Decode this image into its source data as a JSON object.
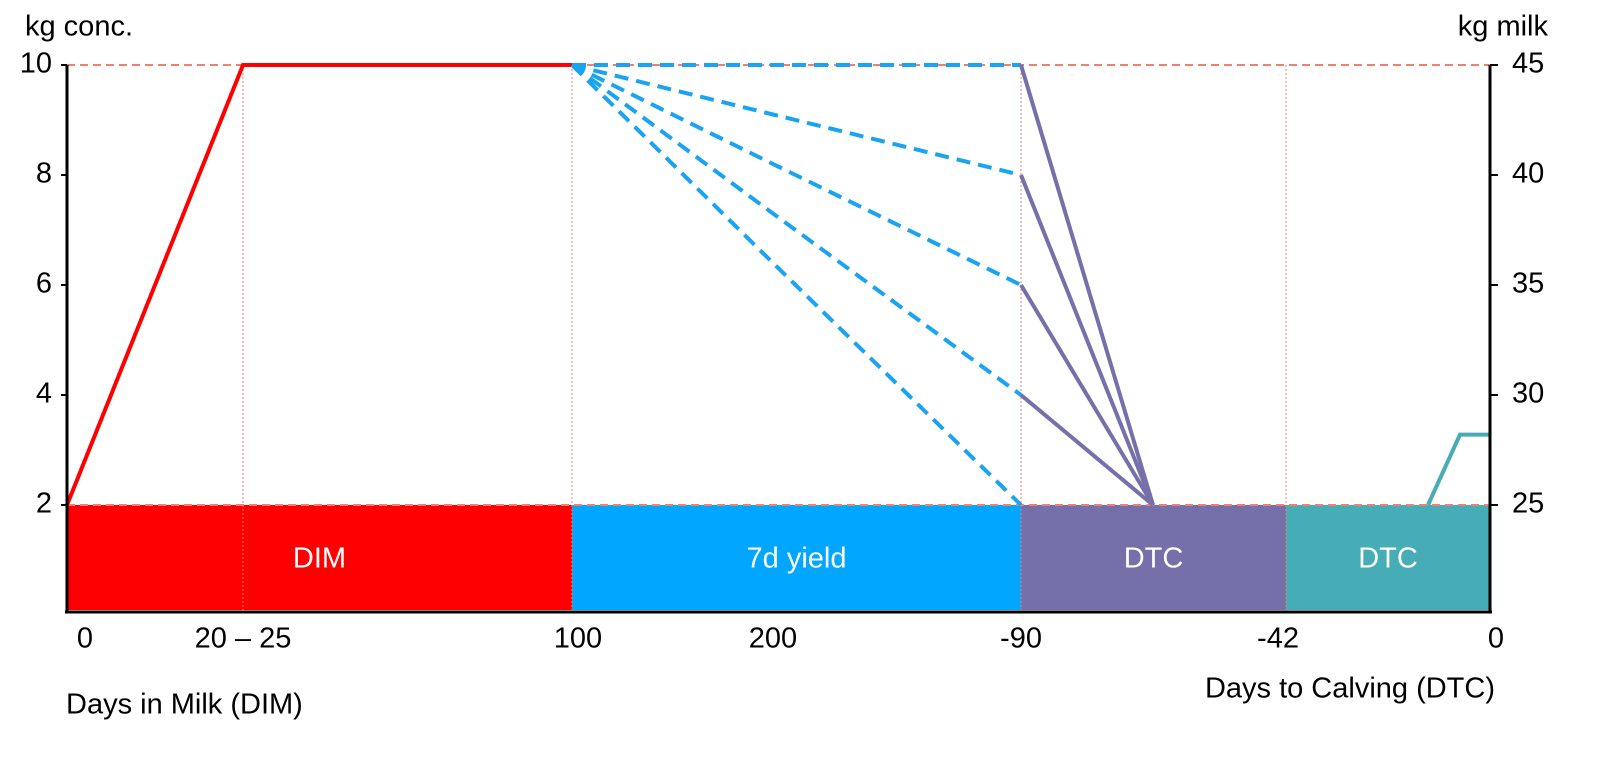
{
  "chart_data": {
    "type": "line",
    "ylabel": "kg conc.",
    "y2label": "kg milk",
    "xlabel": "Days in Milk (DIM)",
    "x2label": "Days to Calving (DTC)",
    "categories": [
      "0",
      "20 – 25",
      "100",
      "200",
      "-90",
      null,
      "-42",
      null,
      null,
      "0"
    ],
    "ylim": [
      0,
      10
    ],
    "yticks": [
      2,
      4,
      6,
      8,
      10
    ],
    "y2lim": [
      20,
      45
    ],
    "y2ticks": [
      25,
      30,
      35,
      40,
      45
    ],
    "reference_lines": [
      10,
      2
    ],
    "bands": [
      {
        "label": "DIM",
        "color": "#ff0000"
      },
      {
        "label": "7d yield",
        "color": "#00a6ff"
      },
      {
        "label": "DTC",
        "color": "#7570aa"
      },
      {
        "label": "DTC",
        "color": "#46adb6"
      }
    ],
    "series": [
      {
        "name": "DIM",
        "color": "#ff0000",
        "dashed": false,
        "values": [
          2,
          10,
          10,
          null,
          null,
          null,
          null,
          null,
          null,
          null
        ]
      },
      {
        "name": "7d yield",
        "color": "#1aa3f0",
        "dashed": true,
        "values": [
          null,
          null,
          10,
          10,
          10,
          null,
          null,
          null,
          null,
          null
        ]
      },
      {
        "name": "7d yield",
        "color": "#1aa3f0",
        "dashed": true,
        "values": [
          null,
          null,
          10,
          9.1,
          8,
          null,
          null,
          null,
          null,
          null
        ]
      },
      {
        "name": "7d yield",
        "color": "#1aa3f0",
        "dashed": true,
        "values": [
          null,
          null,
          10,
          8.2,
          6,
          null,
          null,
          null,
          null,
          null
        ]
      },
      {
        "name": "7d yield",
        "color": "#1aa3f0",
        "dashed": true,
        "values": [
          null,
          null,
          10,
          7.3,
          4,
          null,
          null,
          null,
          null,
          null
        ]
      },
      {
        "name": "7d yield",
        "color": "#1aa3f0",
        "dashed": true,
        "values": [
          null,
          null,
          10,
          6.4,
          2,
          null,
          null,
          null,
          null,
          null
        ]
      },
      {
        "name": "DTC",
        "color": "#7570aa",
        "dashed": false,
        "values": [
          null,
          null,
          null,
          null,
          10,
          2,
          null,
          null,
          null,
          null
        ]
      },
      {
        "name": "DTC",
        "color": "#7570aa",
        "dashed": false,
        "values": [
          null,
          null,
          null,
          null,
          8,
          2,
          null,
          null,
          null,
          null
        ]
      },
      {
        "name": "DTC",
        "color": "#7570aa",
        "dashed": false,
        "values": [
          null,
          null,
          null,
          null,
          6,
          2,
          null,
          null,
          null,
          null
        ]
      },
      {
        "name": "DTC",
        "color": "#7570aa",
        "dashed": false,
        "values": [
          null,
          null,
          null,
          null,
          4,
          2,
          null,
          null,
          null,
          null
        ]
      },
      {
        "name": "DTC",
        "color": "#46adb6",
        "dashed": false,
        "axis": "y2",
        "values": [
          null,
          null,
          null,
          null,
          null,
          null,
          null,
          25,
          28.2,
          28.2
        ]
      }
    ]
  }
}
